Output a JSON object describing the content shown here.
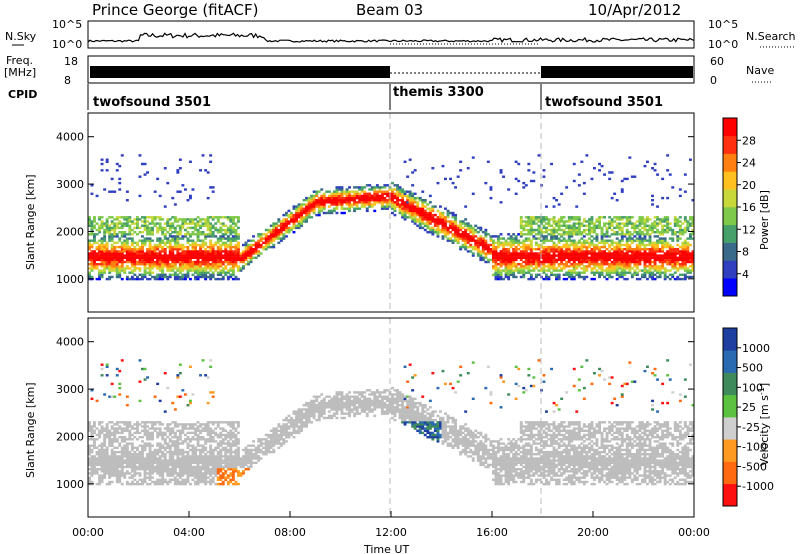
{
  "header": {
    "station": "Prince George (fitACF)",
    "beam": "Beam 03",
    "date": "10/Apr/2012"
  },
  "top_panels": {
    "nsky_label": "N.Sky",
    "nsky_scale_left": [
      "10^5",
      "10^0"
    ],
    "nsky_scale_right": [
      "10^5",
      "10^0"
    ],
    "nsearch_label": "N.Search",
    "freq_label": [
      "Freq.",
      "[MHz]"
    ],
    "freq_scale": [
      "18",
      "8"
    ],
    "nave_scale": [
      "60",
      "0"
    ],
    "nave_label": "Nave",
    "cpid_label": "CPID",
    "cpid_segments": [
      {
        "name": "twofsound 3501",
        "start_hr": 0,
        "end_hr": 12
      },
      {
        "name": "themis 3300",
        "start_hr": 12,
        "end_hr": 18
      },
      {
        "name": "twofsound 3501",
        "start_hr": 18,
        "end_hr": 24
      }
    ]
  },
  "chart_data": [
    {
      "type": "heatmap",
      "name": "power",
      "xlabel": "",
      "ylabel": "Slant Range [km]",
      "xlim": [
        0,
        24
      ],
      "ylim": [
        300,
        4500
      ],
      "yticks": [
        "1000",
        "2000",
        "3000",
        "4000"
      ],
      "colorbar_label": "Power [dB]",
      "colorbar_ticks": [
        "4",
        "8",
        "12",
        "16",
        "20",
        "24",
        "28"
      ],
      "colorbar_range": [
        0,
        30
      ],
      "colors": [
        "#0000ff",
        "#2f3fbf",
        "#3a6a8a",
        "#47a06a",
        "#7ec84a",
        "#c8d83a",
        "#ffc020",
        "#ff8010",
        "#ff3010",
        "#ff0000"
      ],
      "features": [
        {
          "t": [
            0,
            6
          ],
          "range_km": [
            900,
            2300
          ]
        },
        {
          "t": [
            6.5,
            12
          ],
          "range_km": [
            2000,
            2900
          ]
        },
        {
          "t": [
            12,
            16
          ],
          "range_km": [
            1600,
            2800
          ]
        },
        {
          "t": [
            16,
            24
          ],
          "range_km": [
            800,
            2300
          ]
        }
      ]
    },
    {
      "type": "heatmap",
      "name": "velocity",
      "xlabel": "Time UT",
      "ylabel": "Slant Range [km]",
      "xlim": [
        0,
        24
      ],
      "ylim": [
        300,
        4500
      ],
      "xticks": [
        "00:00",
        "04:00",
        "08:00",
        "12:00",
        "16:00",
        "20:00",
        "00:00"
      ],
      "yticks": [
        "1000",
        "2000",
        "3000",
        "4000"
      ],
      "colorbar_label": "Velocity [m s",
      "colorbar_label_sup": "-1",
      "colorbar_ticks": [
        "1000",
        "500",
        "100",
        "25",
        "-25",
        "-100",
        "-500",
        "-1000"
      ],
      "colors": [
        "#1f3fa0",
        "#2a6ab0",
        "#3e8a5a",
        "#5cc040",
        "#cfcfcf",
        "#ff9a20",
        "#ff6a10",
        "#ff1010"
      ],
      "ground_scatter_color": "#bdbdbd"
    }
  ]
}
